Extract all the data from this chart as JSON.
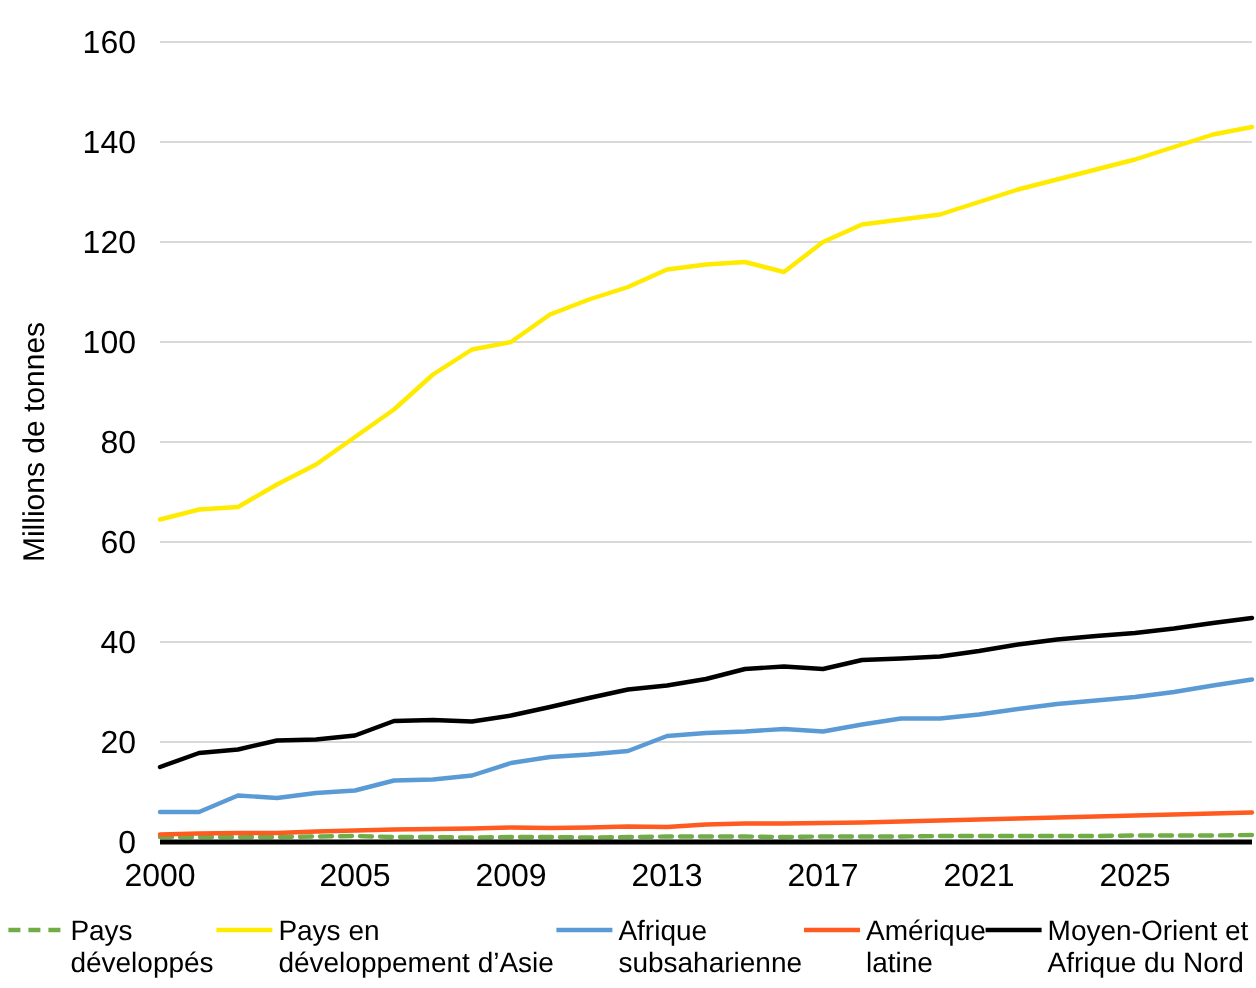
{
  "chart_data": {
    "type": "line",
    "ylabel": "Millions de tonnes",
    "x": [
      2000,
      2001,
      2002,
      2003,
      2004,
      2005,
      2006,
      2007,
      2008,
      2009,
      2010,
      2011,
      2012,
      2013,
      2014,
      2015,
      2016,
      2017,
      2018,
      2019,
      2020,
      2021,
      2022,
      2023,
      2024,
      2025,
      2026,
      2027,
      2028
    ],
    "xlim": [
      2000,
      2028
    ],
    "xticks": [
      2000,
      2005,
      2009,
      2013,
      2017,
      2021,
      2025
    ],
    "ylim": [
      0,
      160
    ],
    "yticks": [
      0,
      20,
      40,
      60,
      80,
      100,
      120,
      140,
      160
    ],
    "grid": "y",
    "legend": "bottom",
    "marker": "none",
    "series": [
      {
        "name": "Pays développés",
        "color": "#70ad47",
        "line_style": "dashed",
        "values": [
          1,
          1,
          1,
          1,
          1.1,
          1.2,
          1,
          1,
          0.9,
          1,
          1,
          0.9,
          1,
          1.1,
          1.1,
          1.1,
          1,
          1.1,
          1.1,
          1.1,
          1.2,
          1.2,
          1.2,
          1.2,
          1.2,
          1.3,
          1.3,
          1.3,
          1.4
        ]
      },
      {
        "name": "Pays en développement d’Asie",
        "color": "#ffeb00",
        "values": [
          64.5,
          66.5,
          67,
          71.5,
          75.5,
          81,
          86.5,
          93.5,
          98.5,
          100,
          105.5,
          108.5,
          111,
          114.5,
          115.5,
          116,
          114,
          120,
          123.5,
          124.5,
          125.5,
          128,
          130.5,
          132.5,
          134.5,
          136.5,
          139,
          141.5,
          143
        ]
      },
      {
        "name": "Afrique subsaharienne",
        "color": "#5b9bd5",
        "values": [
          6,
          6,
          9.3,
          8.8,
          9.8,
          10.3,
          12.3,
          12.5,
          13.3,
          15.8,
          17,
          17.5,
          18.2,
          21.2,
          21.8,
          22.1,
          22.6,
          22.1,
          23.5,
          24.7,
          24.7,
          25.5,
          26.6,
          27.6,
          28.3,
          29,
          30,
          31.3,
          32.5
        ]
      },
      {
        "name": "Amérique latine",
        "color": "#ff5a1f",
        "values": [
          1.5,
          1.7,
          1.8,
          1.8,
          2.1,
          2.3,
          2.5,
          2.6,
          2.7,
          2.9,
          2.8,
          2.9,
          3.1,
          3,
          3.5,
          3.7,
          3.7,
          3.8,
          3.9,
          4.1,
          4.3,
          4.5,
          4.7,
          4.9,
          5.1,
          5.3,
          5.5,
          5.7,
          5.9
        ]
      },
      {
        "name": "Moyen-Orient et Afrique du Nord",
        "color": "#000000",
        "values": [
          15,
          17.8,
          18.5,
          20.3,
          20.5,
          21.3,
          24.2,
          24.4,
          24.1,
          25.3,
          27,
          28.8,
          30.5,
          31.3,
          32.6,
          34.6,
          35.1,
          34.6,
          36.4,
          36.7,
          37.1,
          38.2,
          39.5,
          40.5,
          41.2,
          41.8,
          42.7,
          43.8,
          44.8
        ]
      }
    ]
  }
}
